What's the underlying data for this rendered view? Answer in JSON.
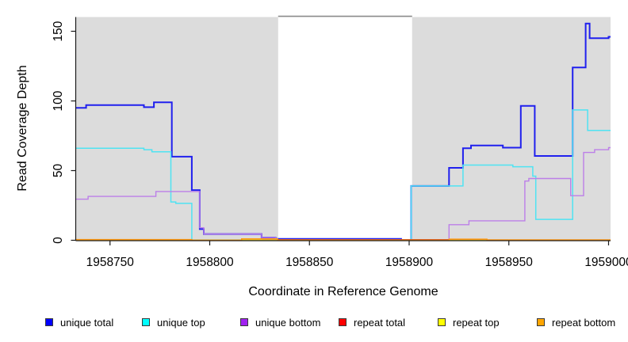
{
  "chart_data": {
    "type": "line",
    "subtype": "step",
    "title": "",
    "xlabel": "Coordinate in Reference Genome",
    "ylabel": "Read Coverage Depth",
    "xlim": [
      1958733,
      1959001
    ],
    "ylim": [
      0,
      160
    ],
    "grid": false,
    "legend_position": "bottom",
    "x_ticks": [
      1958750,
      1958800,
      1958850,
      1958900,
      1958950,
      1959000
    ],
    "x_tick_labels": [
      "1958750",
      "1958800",
      "1958850",
      "1958900",
      "1958950",
      "1959000"
    ],
    "y_ticks": [
      0,
      50,
      100,
      150
    ],
    "y_tick_labels": [
      "0",
      "50",
      "100",
      "150"
    ],
    "axis_color": "#1a1a1a",
    "plot_bg_color": "#ffffff",
    "background_regions": [
      {
        "name": "shaded-region-left",
        "x0": 1958733,
        "x1": 1958834.3,
        "color": "#DCDCDC"
      },
      {
        "name": "shaded-region-right",
        "x0": 1958901.5,
        "x1": 1959001,
        "color": "#DCDCDC"
      }
    ],
    "gap_top_border": {
      "x0": 1958834.3,
      "x1": 1958901.5,
      "color": "#8A8A8A"
    },
    "series": [
      {
        "name": "unique-total",
        "legend_label": "unique total",
        "line_color": "#2020EE",
        "legend_fill": "#0000FF",
        "line_width": 2,
        "points": [
          [
            1958733,
            95
          ],
          [
            1958738,
            97
          ],
          [
            1958767,
            95.5
          ],
          [
            1958772,
            99
          ],
          [
            1958781,
            60
          ],
          [
            1958791,
            36
          ],
          [
            1958795,
            8
          ],
          [
            1958797,
            4.5
          ],
          [
            1958826,
            2
          ],
          [
            1958833,
            1
          ],
          [
            1958896,
            0.3
          ],
          [
            1958901,
            39
          ],
          [
            1958920,
            52
          ],
          [
            1958927,
            66
          ],
          [
            1958931,
            68
          ],
          [
            1958947,
            66.5
          ],
          [
            1958956,
            96.5
          ],
          [
            1958963,
            60.5
          ],
          [
            1958982,
            124
          ],
          [
            1958988.5,
            155.5
          ],
          [
            1958990.5,
            145
          ],
          [
            1959000,
            146
          ]
        ]
      },
      {
        "name": "unique-top",
        "legend_label": "unique top",
        "line_color": "#4FE3F2",
        "legend_fill": "#00FFFF",
        "line_width": 1.5,
        "points": [
          [
            1958733,
            66
          ],
          [
            1958767,
            65
          ],
          [
            1958771,
            63.5
          ],
          [
            1958780.5,
            27.5
          ],
          [
            1958783,
            26.5
          ],
          [
            1958791,
            0.2
          ],
          [
            1958901,
            39
          ],
          [
            1958927,
            54
          ],
          [
            1958952,
            52.8
          ],
          [
            1958962,
            46
          ],
          [
            1958963.5,
            15
          ],
          [
            1958982,
            93.5
          ],
          [
            1958989.5,
            78.8
          ]
        ]
      },
      {
        "name": "unique-bottom",
        "legend_label": "unique bottom",
        "line_color": "#BC7FE8",
        "legend_fill": "#A021F0",
        "line_width": 1.4,
        "points": [
          [
            1958733,
            29.5
          ],
          [
            1958739,
            31.5
          ],
          [
            1958773,
            35
          ],
          [
            1958795,
            9
          ],
          [
            1958797,
            4.5
          ],
          [
            1958826,
            2
          ],
          [
            1958833,
            0.4
          ],
          [
            1958920,
            11.2
          ],
          [
            1958930,
            14
          ],
          [
            1958958,
            42.5
          ],
          [
            1958960,
            44.3
          ],
          [
            1958981,
            32
          ],
          [
            1958987.5,
            63
          ],
          [
            1958993,
            65
          ],
          [
            1959000,
            66.5
          ]
        ]
      },
      {
        "name": "repeat-total",
        "legend_label": "repeat total",
        "line_color": "#D03030",
        "legend_fill": "#FF0000",
        "line_width": 1.3,
        "points": [
          [
            1958733,
            0.1
          ],
          [
            1958834,
            0.5
          ],
          [
            1958920,
            0.15
          ]
        ]
      },
      {
        "name": "repeat-top",
        "legend_label": "repeat top",
        "line_color": "#E8D830",
        "legend_fill": "#FFFF00",
        "line_width": 1.3,
        "points": [
          [
            1958733,
            0.1
          ],
          [
            1958791,
            0.25
          ],
          [
            1958826,
            0.1
          ]
        ]
      },
      {
        "name": "repeat-bottom",
        "legend_label": "repeat bottom",
        "line_color": "#FF9712",
        "legend_fill": "#FFA500",
        "line_width": 1.5,
        "points": [
          [
            1958733,
            0.5
          ],
          [
            1958791,
            0.05
          ],
          [
            1958816,
            1
          ],
          [
            1958834,
            0.05
          ],
          [
            1958920,
            0.8
          ],
          [
            1958939,
            0.3
          ]
        ]
      }
    ]
  }
}
